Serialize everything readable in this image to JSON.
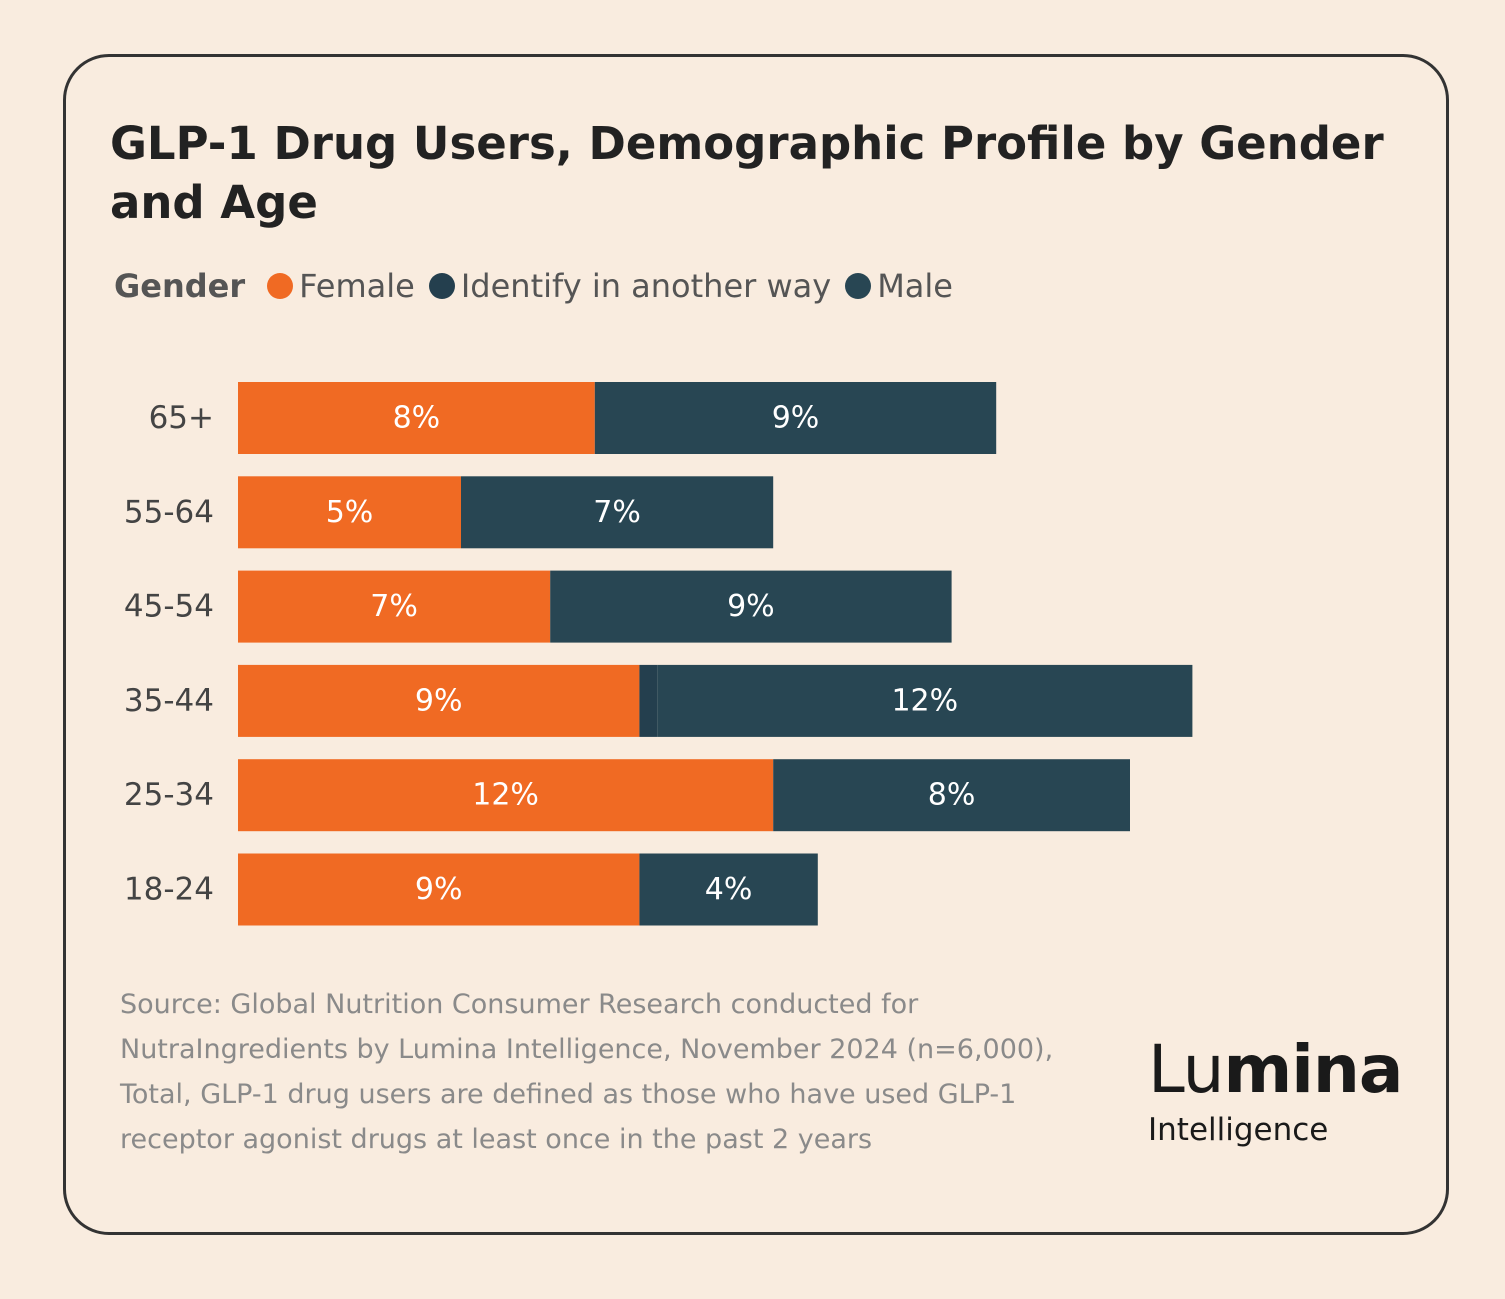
{
  "title": "GLP-1 Drug Users, Demographic Profile by Gender and Age",
  "legend": {
    "title": "Gender",
    "items": [
      {
        "label": "Female",
        "color": "#f06a23"
      },
      {
        "label": "Identify in another way",
        "color": "#243f4e"
      },
      {
        "label": "Male",
        "color": "#284653"
      }
    ]
  },
  "chart_data": {
    "type": "bar",
    "orientation": "horizontal",
    "stacked": true,
    "categories": [
      "65+",
      "55-64",
      "45-54",
      "35-44",
      "25-34",
      "18-24"
    ],
    "series": [
      {
        "name": "Female",
        "color": "#f06a23",
        "values": [
          8,
          5,
          7,
          9,
          12,
          9
        ],
        "labels": [
          "8%",
          "5%",
          "7%",
          "9%",
          "12%",
          "9%"
        ]
      },
      {
        "name": "Identify in another way",
        "color": "#243f4e",
        "values": [
          0,
          0,
          0,
          0.4,
          0,
          0
        ],
        "labels": [
          "",
          "",
          "",
          "",
          "",
          ""
        ]
      },
      {
        "name": "Male",
        "color": "#284653",
        "values": [
          9,
          7,
          9,
          12,
          8,
          4
        ],
        "labels": [
          "9%",
          "7%",
          "9%",
          "12%",
          "8%",
          "4%"
        ]
      }
    ],
    "xlim": [
      0,
      22
    ],
    "grid": false,
    "legend_position": "top-left",
    "title": "GLP-1 Drug Users, Demographic Profile by Gender and Age",
    "xlabel": "",
    "ylabel": ""
  },
  "source": "Source: Global Nutrition Consumer Research conducted for NutraIngredients by Lumina Intelligence, November 2024 (n=6,000), Total, GLP-1 drug users are defined as those who have used GLP-1 receptor agonist drugs at least once in the past 2 years",
  "logo": {
    "word_light": "Lu",
    "word_bold": "mina",
    "subtitle": "Intelligence"
  }
}
